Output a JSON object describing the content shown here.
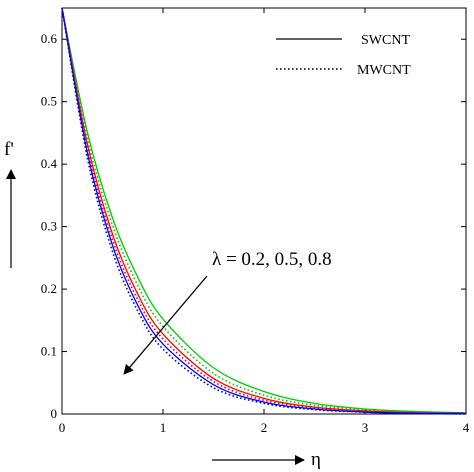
{
  "chart_data": {
    "type": "line",
    "xlabel": "η",
    "ylabel": "f'",
    "xlim": [
      0,
      4
    ],
    "ylim": [
      0,
      0.65
    ],
    "x_ticks": [
      "0",
      "1",
      "2",
      "3",
      "4"
    ],
    "y_ticks": [
      "0",
      "0.1",
      "0.2",
      "0.3",
      "0.4",
      "0.5",
      "0.6"
    ],
    "grid": false,
    "legend_position": "top-right",
    "legend": [
      {
        "label": "SWCNT",
        "style": "solid"
      },
      {
        "label": "MWCNT",
        "style": "dotted"
      }
    ],
    "annotation": "λ = 0.2, 0.5, 0.8",
    "series": [
      {
        "color": "#00cc00",
        "style": "solid",
        "x": [
          0,
          0.25,
          0.5,
          0.75,
          1,
          1.5,
          2,
          2.5,
          3,
          3.5,
          4
        ],
        "y": [
          0.65,
          0.452,
          0.314,
          0.219,
          0.152,
          0.074,
          0.036,
          0.017,
          0.008,
          0.004,
          0.002
        ]
      },
      {
        "color": "#00cc00",
        "style": "dotted",
        "x": [
          0,
          0.25,
          0.5,
          0.75,
          1,
          1.5,
          2,
          2.5,
          3,
          3.5,
          4
        ],
        "y": [
          0.65,
          0.443,
          0.302,
          0.206,
          0.14,
          0.065,
          0.03,
          0.014,
          0.007,
          0.003,
          0.001
        ]
      },
      {
        "color": "#ff0000",
        "style": "solid",
        "x": [
          0,
          0.25,
          0.5,
          0.75,
          1,
          1.5,
          2,
          2.5,
          3,
          3.5,
          4
        ],
        "y": [
          0.65,
          0.433,
          0.288,
          0.192,
          0.128,
          0.057,
          0.025,
          0.011,
          0.005,
          0.002,
          0.001
        ]
      },
      {
        "color": "#ff0000",
        "style": "dotted",
        "x": [
          0,
          0.25,
          0.5,
          0.75,
          1,
          1.5,
          2,
          2.5,
          3,
          3.5,
          4
        ],
        "y": [
          0.65,
          0.426,
          0.279,
          0.183,
          0.12,
          0.052,
          0.022,
          0.01,
          0.004,
          0.002,
          0.001
        ]
      },
      {
        "color": "#0000ff",
        "style": "solid",
        "x": [
          0,
          0.25,
          0.5,
          0.75,
          1,
          1.5,
          2,
          2.5,
          3,
          3.5,
          4
        ],
        "y": [
          0.65,
          0.419,
          0.27,
          0.174,
          0.112,
          0.047,
          0.019,
          0.008,
          0.003,
          0.001,
          0.001
        ]
      },
      {
        "color": "#0000ff",
        "style": "dotted",
        "x": [
          0,
          0.25,
          0.5,
          0.75,
          1,
          1.5,
          2,
          2.5,
          3,
          3.5,
          4
        ],
        "y": [
          0.65,
          0.411,
          0.26,
          0.165,
          0.104,
          0.042,
          0.017,
          0.007,
          0.003,
          0.001,
          0.0
        ]
      }
    ]
  }
}
